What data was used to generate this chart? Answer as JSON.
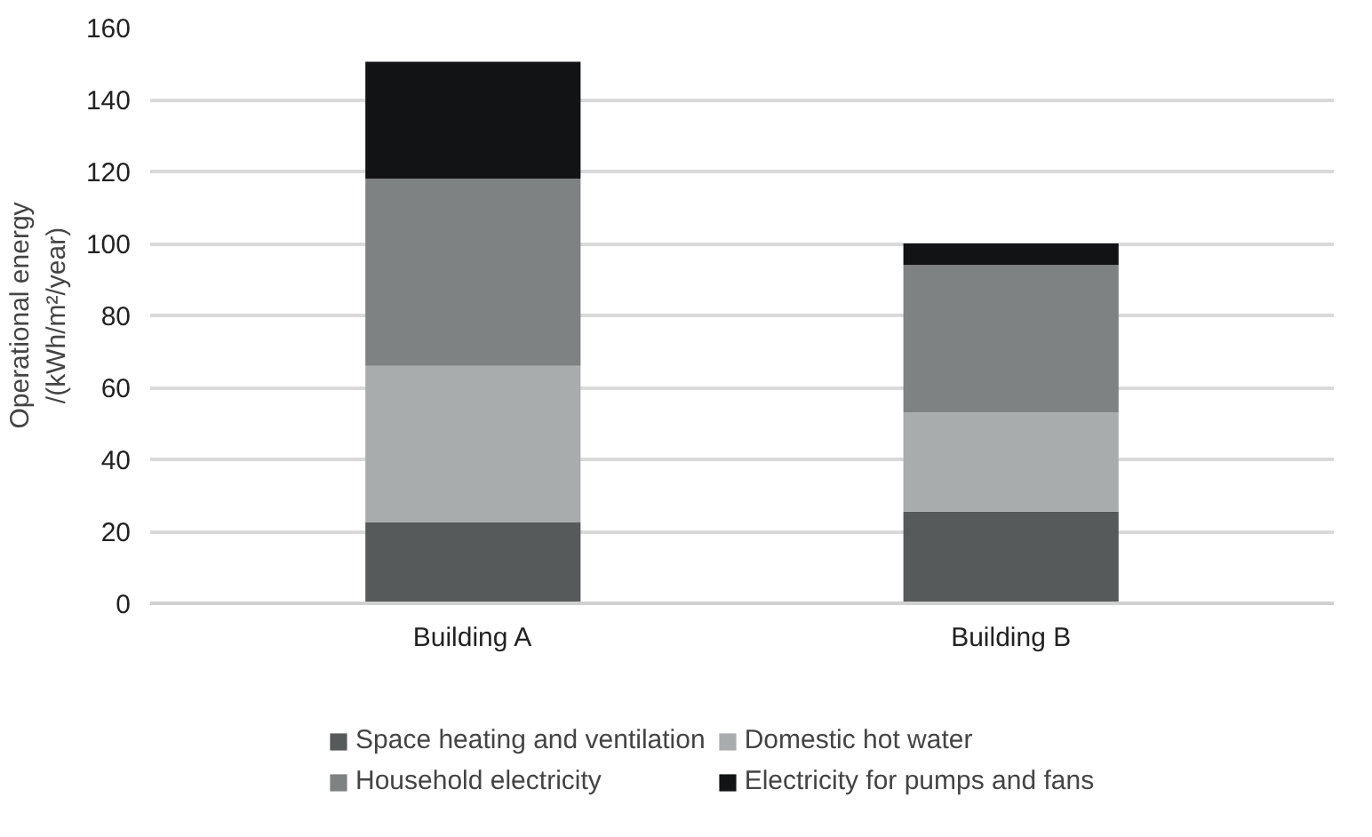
{
  "chart_data": {
    "type": "bar",
    "stacked": true,
    "categories": [
      "Building A",
      "Building B"
    ],
    "ylabel": "Operational energy\n/(kWh/m²/year)",
    "series": [
      {
        "name": "Space heating and ventilation",
        "color": "#575a5a",
        "values": [
          22.5,
          25.5
        ]
      },
      {
        "name": "Domestic hot water",
        "color": "#a9acac",
        "values": [
          43.5,
          27.5
        ]
      },
      {
        "name": "Household electricity",
        "color": "#7f8282",
        "values": [
          52,
          41
        ]
      },
      {
        "name": "Electricity for pumps and fans",
        "color": "#111314",
        "values": [
          32.5,
          6
        ]
      }
    ],
    "ylim": [
      0,
      160
    ],
    "yticks": [
      0,
      20,
      40,
      60,
      80,
      100,
      120,
      140,
      160
    ],
    "grid": "y",
    "legend": "bottom"
  }
}
